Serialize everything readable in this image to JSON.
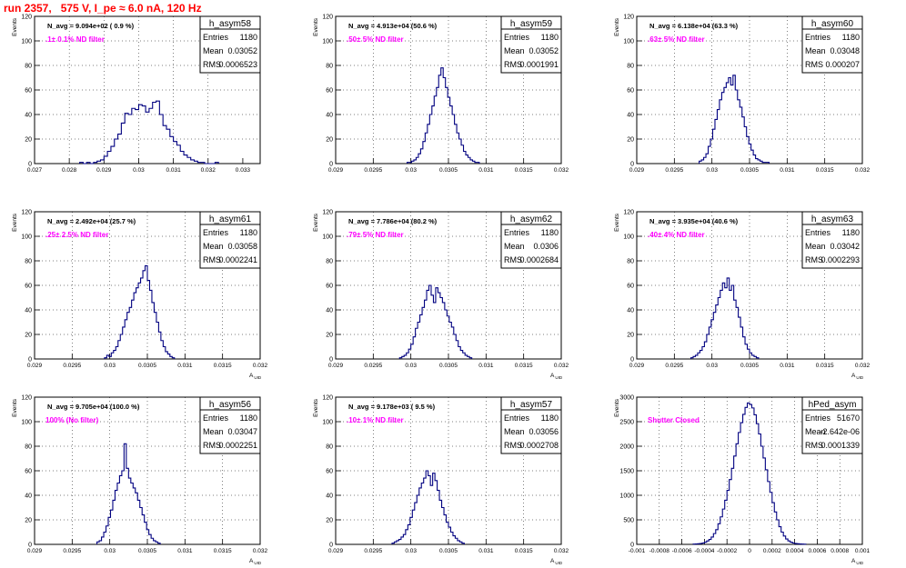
{
  "title": "run 2357,   575 V, I_pe ≈ 6.0 nA, 120 Hz",
  "colors": {
    "title": "#ff0000",
    "histogram": "#000080",
    "annotation": "#ff00ff",
    "grid": "#000000"
  },
  "chart_data": [
    {
      "type": "histogram",
      "name": "h_asym58",
      "ylabel": "Events",
      "xlabel": "",
      "navg": "N_avg = 9.094e+02 ( 0.9 %)",
      "filter": ".1± 0.1% ND filter",
      "stats": {
        "entries": "1180",
        "mean": "0.03052",
        "rms": "0.0006523"
      },
      "xlim": [
        0.027,
        0.0335
      ],
      "ylim": [
        0,
        120
      ],
      "xticks": [
        "0.027",
        "0.028",
        "0.029",
        "0.03",
        "0.031",
        "0.032",
        "0.033"
      ],
      "xtick_values": [
        0.027,
        0.028,
        0.029,
        0.03,
        0.031,
        0.032,
        0.033
      ],
      "yticks": [
        "0",
        "20",
        "40",
        "60",
        "80",
        "100",
        "120"
      ],
      "grid": true,
      "bins": {
        "x0": 0.0283,
        "width": 0.0001,
        "counts": [
          1,
          0,
          1,
          0,
          1,
          2,
          3,
          6,
          10,
          14,
          20,
          24,
          33,
          41,
          40,
          45,
          44,
          48,
          47,
          42,
          45,
          50,
          51,
          40,
          31,
          28,
          22,
          18,
          15,
          10,
          7,
          5,
          3,
          2,
          1,
          1,
          0,
          0,
          0,
          1
        ]
      }
    },
    {
      "type": "histogram",
      "name": "h_asym59",
      "ylabel": "Events",
      "xlabel": "",
      "navg": "N_avg = 4.913e+04 (50.6 %)",
      "filter": ".50± 5% ND filter",
      "stats": {
        "entries": "1180",
        "mean": "0.03052",
        "rms": "0.0001991"
      },
      "xlim": [
        0.029,
        0.032
      ],
      "ylim": [
        0,
        120
      ],
      "xticks": [
        "0.029",
        "0.0295",
        "0.03",
        "0.0305",
        "0.031",
        "0.0315",
        "0.032"
      ],
      "xtick_values": [
        0.029,
        0.0295,
        0.03,
        0.0305,
        0.031,
        0.0315,
        0.032
      ],
      "yticks": [
        "0",
        "20",
        "40",
        "60",
        "80",
        "100",
        "120"
      ],
      "grid": true,
      "bins": {
        "x0": 0.02995,
        "width": 3e-05,
        "counts": [
          1,
          1,
          2,
          3,
          5,
          8,
          12,
          18,
          25,
          32,
          40,
          47,
          55,
          62,
          72,
          78,
          70,
          62,
          54,
          47,
          40,
          32,
          25,
          20,
          15,
          10,
          7,
          5,
          3,
          2,
          1,
          1
        ]
      }
    },
    {
      "type": "histogram",
      "name": "h_asym60",
      "ylabel": "Events",
      "xlabel": "",
      "navg": "N_avg = 6.138e+04 (63.3 %)",
      "filter": ".63± 5% ND filter",
      "stats": {
        "entries": "1180",
        "mean": "0.03048",
        "rms": "0.000207"
      },
      "xlim": [
        0.029,
        0.032
      ],
      "ylim": [
        0,
        120
      ],
      "xticks": [
        "0.029",
        "0.0295",
        "0.03",
        "0.0305",
        "0.031",
        "0.0315",
        "0.032"
      ],
      "xtick_values": [
        0.029,
        0.0295,
        0.03,
        0.0305,
        0.031,
        0.0315,
        0.032
      ],
      "yticks": [
        "0",
        "20",
        "40",
        "60",
        "80",
        "100",
        "120"
      ],
      "grid": true,
      "bins": {
        "x0": 0.02983,
        "width": 3e-05,
        "counts": [
          2,
          3,
          5,
          8,
          14,
          20,
          28,
          36,
          44,
          52,
          58,
          62,
          66,
          70,
          64,
          72,
          60,
          52,
          46,
          38,
          30,
          22,
          16,
          11,
          7,
          4,
          3,
          2,
          1,
          1,
          1
        ]
      }
    },
    {
      "type": "histogram",
      "name": "h_asym61",
      "ylabel": "Events",
      "xlabel": "A_UID",
      "navg": "N_avg = 2.492e+04 (25.7 %)",
      "filter": ".25± 2.5% ND filter",
      "stats": {
        "entries": "1180",
        "mean": "0.03058",
        "rms": "0.0002241"
      },
      "xlim": [
        0.029,
        0.032
      ],
      "ylim": [
        0,
        120
      ],
      "xticks": [
        "0.029",
        "0.0295",
        "0.03",
        "0.0305",
        "0.031",
        "0.0315",
        "0.032"
      ],
      "xtick_values": [
        0.029,
        0.0295,
        0.03,
        0.0305,
        0.031,
        0.0315,
        0.032
      ],
      "yticks": [
        "0",
        "20",
        "40",
        "60",
        "80",
        "100",
        "120"
      ],
      "grid": true,
      "bins": {
        "x0": 0.02993,
        "width": 3e-05,
        "counts": [
          1,
          3,
          2,
          5,
          7,
          10,
          15,
          20,
          26,
          32,
          38,
          42,
          48,
          54,
          58,
          62,
          66,
          72,
          76,
          64,
          56,
          46,
          38,
          30,
          22,
          15,
          10,
          6,
          4,
          2,
          1
        ]
      }
    },
    {
      "type": "histogram",
      "name": "h_asym62",
      "ylabel": "Events",
      "xlabel": "A_UID",
      "navg": "N_avg = 7.786e+04 (80.2 %)",
      "filter": ".79± 5% ND filter",
      "stats": {
        "entries": "1180",
        "mean": "0.0306",
        "rms": "0.0002684"
      },
      "xlim": [
        0.029,
        0.032
      ],
      "ylim": [
        0,
        120
      ],
      "xticks": [
        "0.029",
        "0.0295",
        "0.03",
        "0.0305",
        "0.031",
        "0.0315",
        "0.032"
      ],
      "xtick_values": [
        0.029,
        0.0295,
        0.03,
        0.0305,
        0.031,
        0.0315,
        0.032
      ],
      "yticks": [
        "0",
        "20",
        "40",
        "60",
        "80",
        "100",
        "120"
      ],
      "grid": true,
      "bins": {
        "x0": 0.02985,
        "width": 3e-05,
        "counts": [
          1,
          2,
          3,
          5,
          8,
          12,
          18,
          25,
          30,
          36,
          42,
          48,
          56,
          60,
          52,
          46,
          58,
          54,
          50,
          46,
          40,
          35,
          30,
          26,
          20,
          15,
          10,
          7,
          5,
          3,
          2,
          1
        ]
      }
    },
    {
      "type": "histogram",
      "name": "h_asym63",
      "ylabel": "Events",
      "xlabel": "A_UID",
      "navg": "N_avg = 3.935e+04 (40.6 %)",
      "filter": ".40± 4% ND filter",
      "stats": {
        "entries": "1180",
        "mean": "0.03042",
        "rms": "0.0002293"
      },
      "xlim": [
        0.029,
        0.032
      ],
      "ylim": [
        0,
        120
      ],
      "xticks": [
        "0.029",
        "0.0295",
        "0.03",
        "0.0305",
        "0.031",
        "0.0315",
        "0.032"
      ],
      "xtick_values": [
        0.029,
        0.0295,
        0.03,
        0.0305,
        0.031,
        0.0315,
        0.032
      ],
      "yticks": [
        "0",
        "20",
        "40",
        "60",
        "80",
        "100",
        "120"
      ],
      "grid": true,
      "bins": {
        "x0": 0.02972,
        "width": 3e-05,
        "counts": [
          1,
          2,
          3,
          5,
          7,
          10,
          14,
          20,
          26,
          32,
          38,
          44,
          50,
          56,
          62,
          58,
          66,
          56,
          60,
          48,
          42,
          34,
          26,
          18,
          12,
          8,
          5,
          3,
          2,
          1
        ]
      }
    },
    {
      "type": "histogram",
      "name": "h_asym56",
      "ylabel": "Events",
      "xlabel": "A_UID",
      "navg": "N_avg = 9.705e+04 (100.0 %)",
      "filter": "100% (No filter)",
      "stats": {
        "entries": "1180",
        "mean": "0.03047",
        "rms": "0.0002251"
      },
      "xlim": [
        0.029,
        0.032
      ],
      "ylim": [
        0,
        120
      ],
      "xticks": [
        "0.029",
        "0.0295",
        "0.03",
        "0.0305",
        "0.031",
        "0.0315",
        "0.032"
      ],
      "xtick_values": [
        0.029,
        0.0295,
        0.03,
        0.0305,
        0.031,
        0.0315,
        0.032
      ],
      "yticks": [
        "0",
        "20",
        "40",
        "60",
        "80",
        "100",
        "120"
      ],
      "grid": true,
      "bins": {
        "x0": 0.02983,
        "width": 3e-05,
        "counts": [
          2,
          3,
          6,
          10,
          15,
          22,
          28,
          36,
          44,
          50,
          56,
          60,
          82,
          62,
          54,
          50,
          46,
          42,
          36,
          30,
          24,
          18,
          12,
          8,
          5,
          3,
          2,
          1
        ]
      }
    },
    {
      "type": "histogram",
      "name": "h_asym57",
      "ylabel": "Events",
      "xlabel": "A_UID",
      "navg": "N_avg = 9.178e+03 ( 9.5 %)",
      "filter": ".10± 1% ND filter",
      "stats": {
        "entries": "1180",
        "mean": "0.03056",
        "rms": "0.0002708"
      },
      "xlim": [
        0.029,
        0.032
      ],
      "ylim": [
        0,
        120
      ],
      "xticks": [
        "0.029",
        "0.0295",
        "0.03",
        "0.0305",
        "0.031",
        "0.0315",
        "0.032"
      ],
      "xtick_values": [
        0.029,
        0.0295,
        0.03,
        0.0305,
        0.031,
        0.0315,
        0.032
      ],
      "yticks": [
        "0",
        "20",
        "40",
        "60",
        "80",
        "100",
        "120"
      ],
      "grid": true,
      "bins": {
        "x0": 0.02975,
        "width": 3e-05,
        "counts": [
          1,
          2,
          3,
          4,
          6,
          8,
          12,
          16,
          22,
          28,
          34,
          40,
          46,
          50,
          54,
          60,
          56,
          48,
          58,
          52,
          44,
          36,
          30,
          24,
          18,
          14,
          10,
          7,
          5,
          3,
          2,
          1
        ]
      }
    },
    {
      "type": "histogram",
      "name": "hPed_asym",
      "ylabel": "Events",
      "xlabel": "A_UID",
      "navg": "",
      "filter": "Shutter Closed",
      "stats": {
        "entries": "51670",
        "mean": "-2.642e-06",
        "rms": "0.0001339"
      },
      "xlim": [
        -0.001,
        0.001
      ],
      "ylim": [
        0,
        3000
      ],
      "xticks": [
        "-0.001",
        "-0.0008",
        "-0.0006",
        "-0.0004",
        "-0.0002",
        "0",
        "0.0002",
        "0.0004",
        "0.0006",
        "0.0008",
        "0.001"
      ],
      "xtick_values": [
        -0.001,
        -0.0008,
        -0.0006,
        -0.0004,
        -0.0002,
        0,
        0.0002,
        0.0004,
        0.0006,
        0.0008,
        0.001
      ],
      "yticks": [
        "0",
        "500",
        "1000",
        "1500",
        "2000",
        "2500",
        "3000"
      ],
      "grid": true,
      "bins": {
        "x0": -0.0005,
        "width": 2e-05,
        "counts": [
          5,
          8,
          12,
          18,
          28,
          45,
          70,
          100,
          150,
          220,
          300,
          420,
          560,
          720,
          900,
          1100,
          1320,
          1550,
          1800,
          2050,
          2280,
          2480,
          2650,
          2790,
          2880,
          2850,
          2780,
          2640,
          2460,
          2250,
          2000,
          1760,
          1520,
          1280,
          1060,
          850,
          660,
          500,
          360,
          250,
          170,
          110,
          70,
          45,
          28,
          18,
          12,
          8,
          5,
          3
        ]
      }
    }
  ]
}
